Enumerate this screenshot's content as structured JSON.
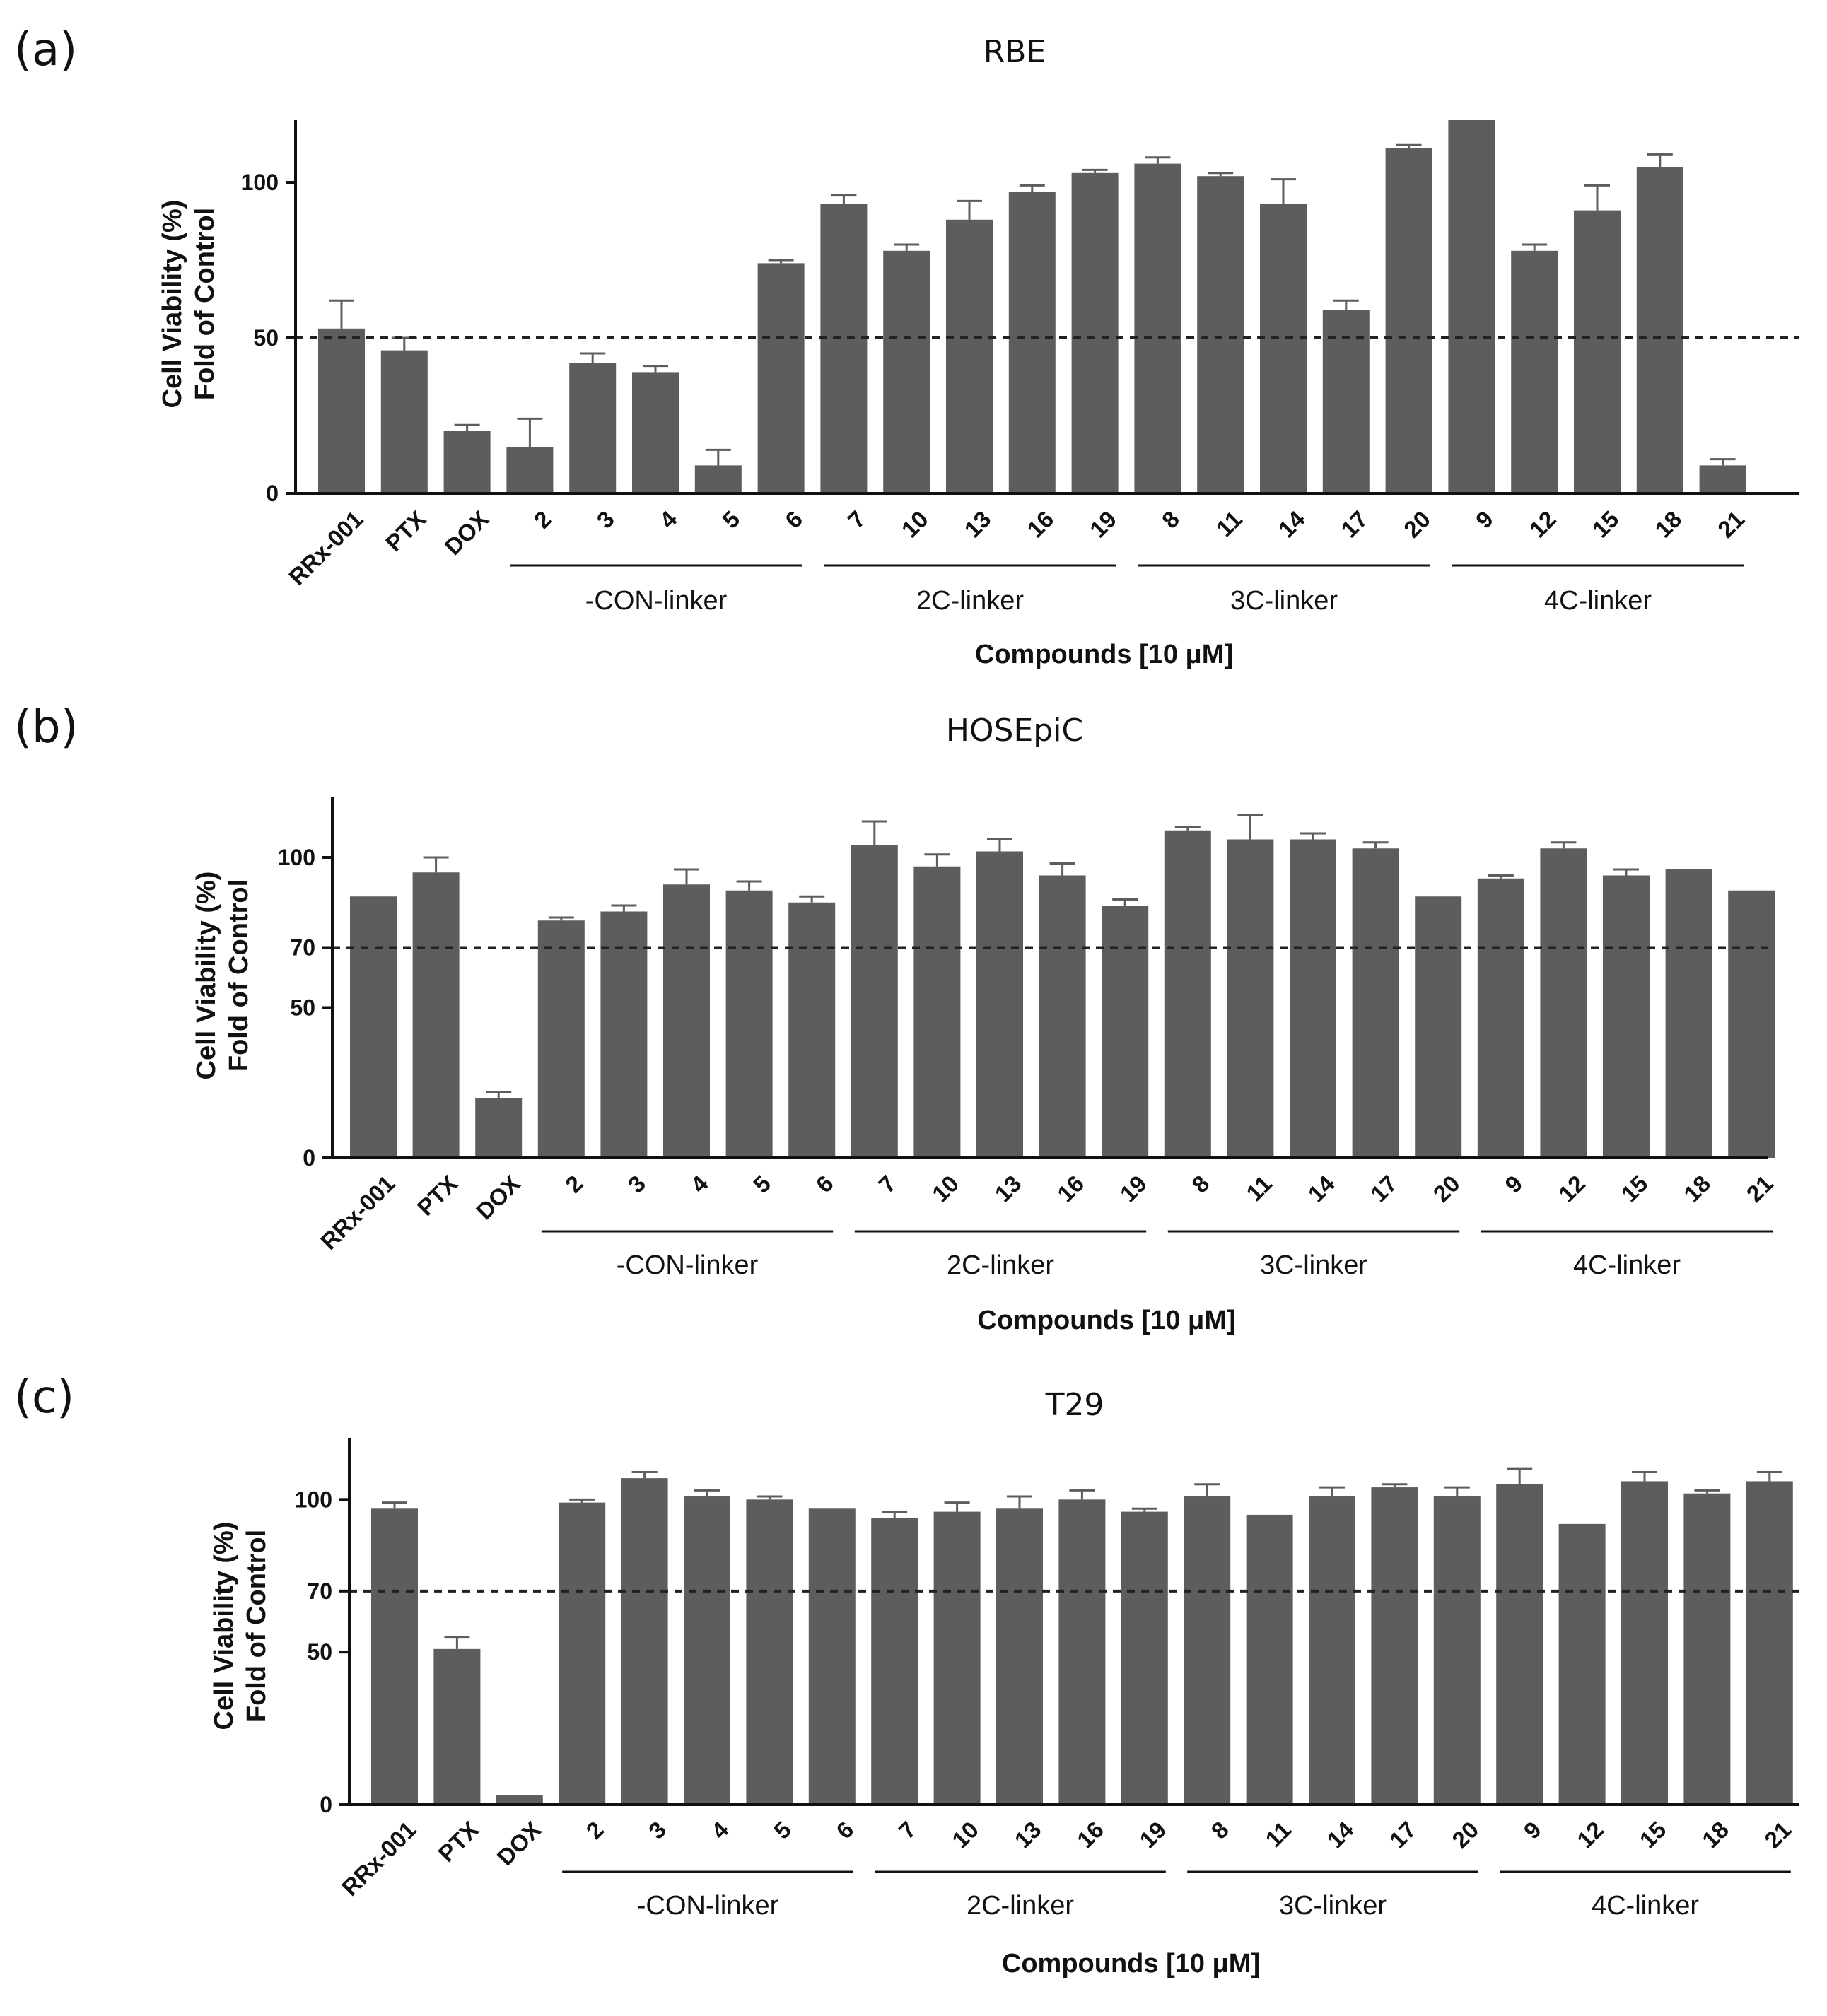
{
  "chart_data": [
    {
      "type": "bar",
      "panel_label": "(a)",
      "title": "RBE",
      "ylabel_line1": "Cell Viability (%)",
      "ylabel_line2": "Fold of Control",
      "xlabel": "Compounds [10 μM]",
      "ylim": [
        0,
        120
      ],
      "yticks": [
        0,
        50,
        100
      ],
      "threshold": 50,
      "categories": [
        "RRx-001",
        "PTX",
        "DOX",
        "2",
        "3",
        "4",
        "5",
        "6",
        "7",
        "10",
        "13",
        "16",
        "19",
        "8",
        "11",
        "14",
        "17",
        "20",
        "9",
        "12",
        "15",
        "18",
        "21"
      ],
      "values": [
        53,
        46,
        20,
        15,
        42,
        39,
        9,
        74,
        93,
        78,
        88,
        97,
        103,
        106,
        102,
        93,
        59,
        111,
        120,
        78,
        91,
        105,
        9
      ],
      "errors": [
        9,
        4,
        2,
        9,
        3,
        2,
        5,
        1,
        3,
        2,
        6,
        2,
        1,
        2,
        1,
        8,
        3,
        1,
        0,
        2,
        8,
        4,
        2
      ],
      "groups": [
        {
          "label": "-CON-linker",
          "start": 3,
          "end": 7
        },
        {
          "label": "2C-linker",
          "start": 8,
          "end": 12
        },
        {
          "label": "3C-linker",
          "start": 13,
          "end": 17
        },
        {
          "label": "4C-linker",
          "start": 18,
          "end": 22
        }
      ]
    },
    {
      "type": "bar",
      "panel_label": "(b)",
      "title": "HOSEpiC",
      "ylabel_line1": "Cell Viability (%)",
      "ylabel_line2": "Fold of Control",
      "xlabel": "Compounds [10 μM]",
      "ylim": [
        0,
        120
      ],
      "yticks": [
        0,
        50,
        70,
        100
      ],
      "threshold": 70,
      "categories": [
        "RRx-001",
        "PTX",
        "DOX",
        "2",
        "3",
        "4",
        "5",
        "6",
        "7",
        "10",
        "13",
        "16",
        "19",
        "8",
        "11",
        "14",
        "17",
        "20",
        "9",
        "12",
        "15",
        "18",
        "21"
      ],
      "values": [
        87,
        95,
        20,
        79,
        82,
        91,
        89,
        85,
        104,
        97,
        102,
        94,
        84,
        109,
        106,
        106,
        103,
        87,
        93,
        103,
        94,
        96,
        89
      ],
      "errors": [
        0,
        5,
        2,
        1,
        2,
        5,
        3,
        2,
        8,
        4,
        4,
        4,
        2,
        1,
        8,
        2,
        2,
        0,
        1,
        2,
        2,
        0,
        0
      ],
      "groups": [
        {
          "label": "-CON-linker",
          "start": 3,
          "end": 7
        },
        {
          "label": "2C-linker",
          "start": 8,
          "end": 12
        },
        {
          "label": "3C-linker",
          "start": 13,
          "end": 17
        },
        {
          "label": "4C-linker",
          "start": 18,
          "end": 22
        }
      ]
    },
    {
      "type": "bar",
      "panel_label": "(c)",
      "title": "T29",
      "ylabel_line1": "Cell Viability (%)",
      "ylabel_line2": "Fold of Control",
      "xlabel": "Compounds [10 μM]",
      "ylim": [
        0,
        120
      ],
      "yticks": [
        0,
        50,
        70,
        100
      ],
      "threshold": 70,
      "categories": [
        "RRx-001",
        "PTX",
        "DOX",
        "2",
        "3",
        "4",
        "5",
        "6",
        "7",
        "10",
        "13",
        "16",
        "19",
        "8",
        "11",
        "14",
        "17",
        "20",
        "9",
        "12",
        "15",
        "18",
        "21"
      ],
      "values": [
        97,
        51,
        3,
        99,
        107,
        101,
        100,
        97,
        94,
        96,
        97,
        100,
        96,
        101,
        95,
        101,
        104,
        101,
        105,
        92,
        106,
        102,
        106
      ],
      "errors": [
        2,
        4,
        0,
        1,
        2,
        2,
        1,
        0,
        2,
        3,
        4,
        3,
        1,
        4,
        0,
        3,
        1,
        3,
        5,
        0,
        3,
        1,
        3
      ],
      "groups": [
        {
          "label": "-CON-linker",
          "start": 3,
          "end": 7
        },
        {
          "label": "2C-linker",
          "start": 8,
          "end": 12
        },
        {
          "label": "3C-linker",
          "start": 13,
          "end": 17
        },
        {
          "label": "4C-linker",
          "start": 18,
          "end": 22
        }
      ]
    }
  ]
}
